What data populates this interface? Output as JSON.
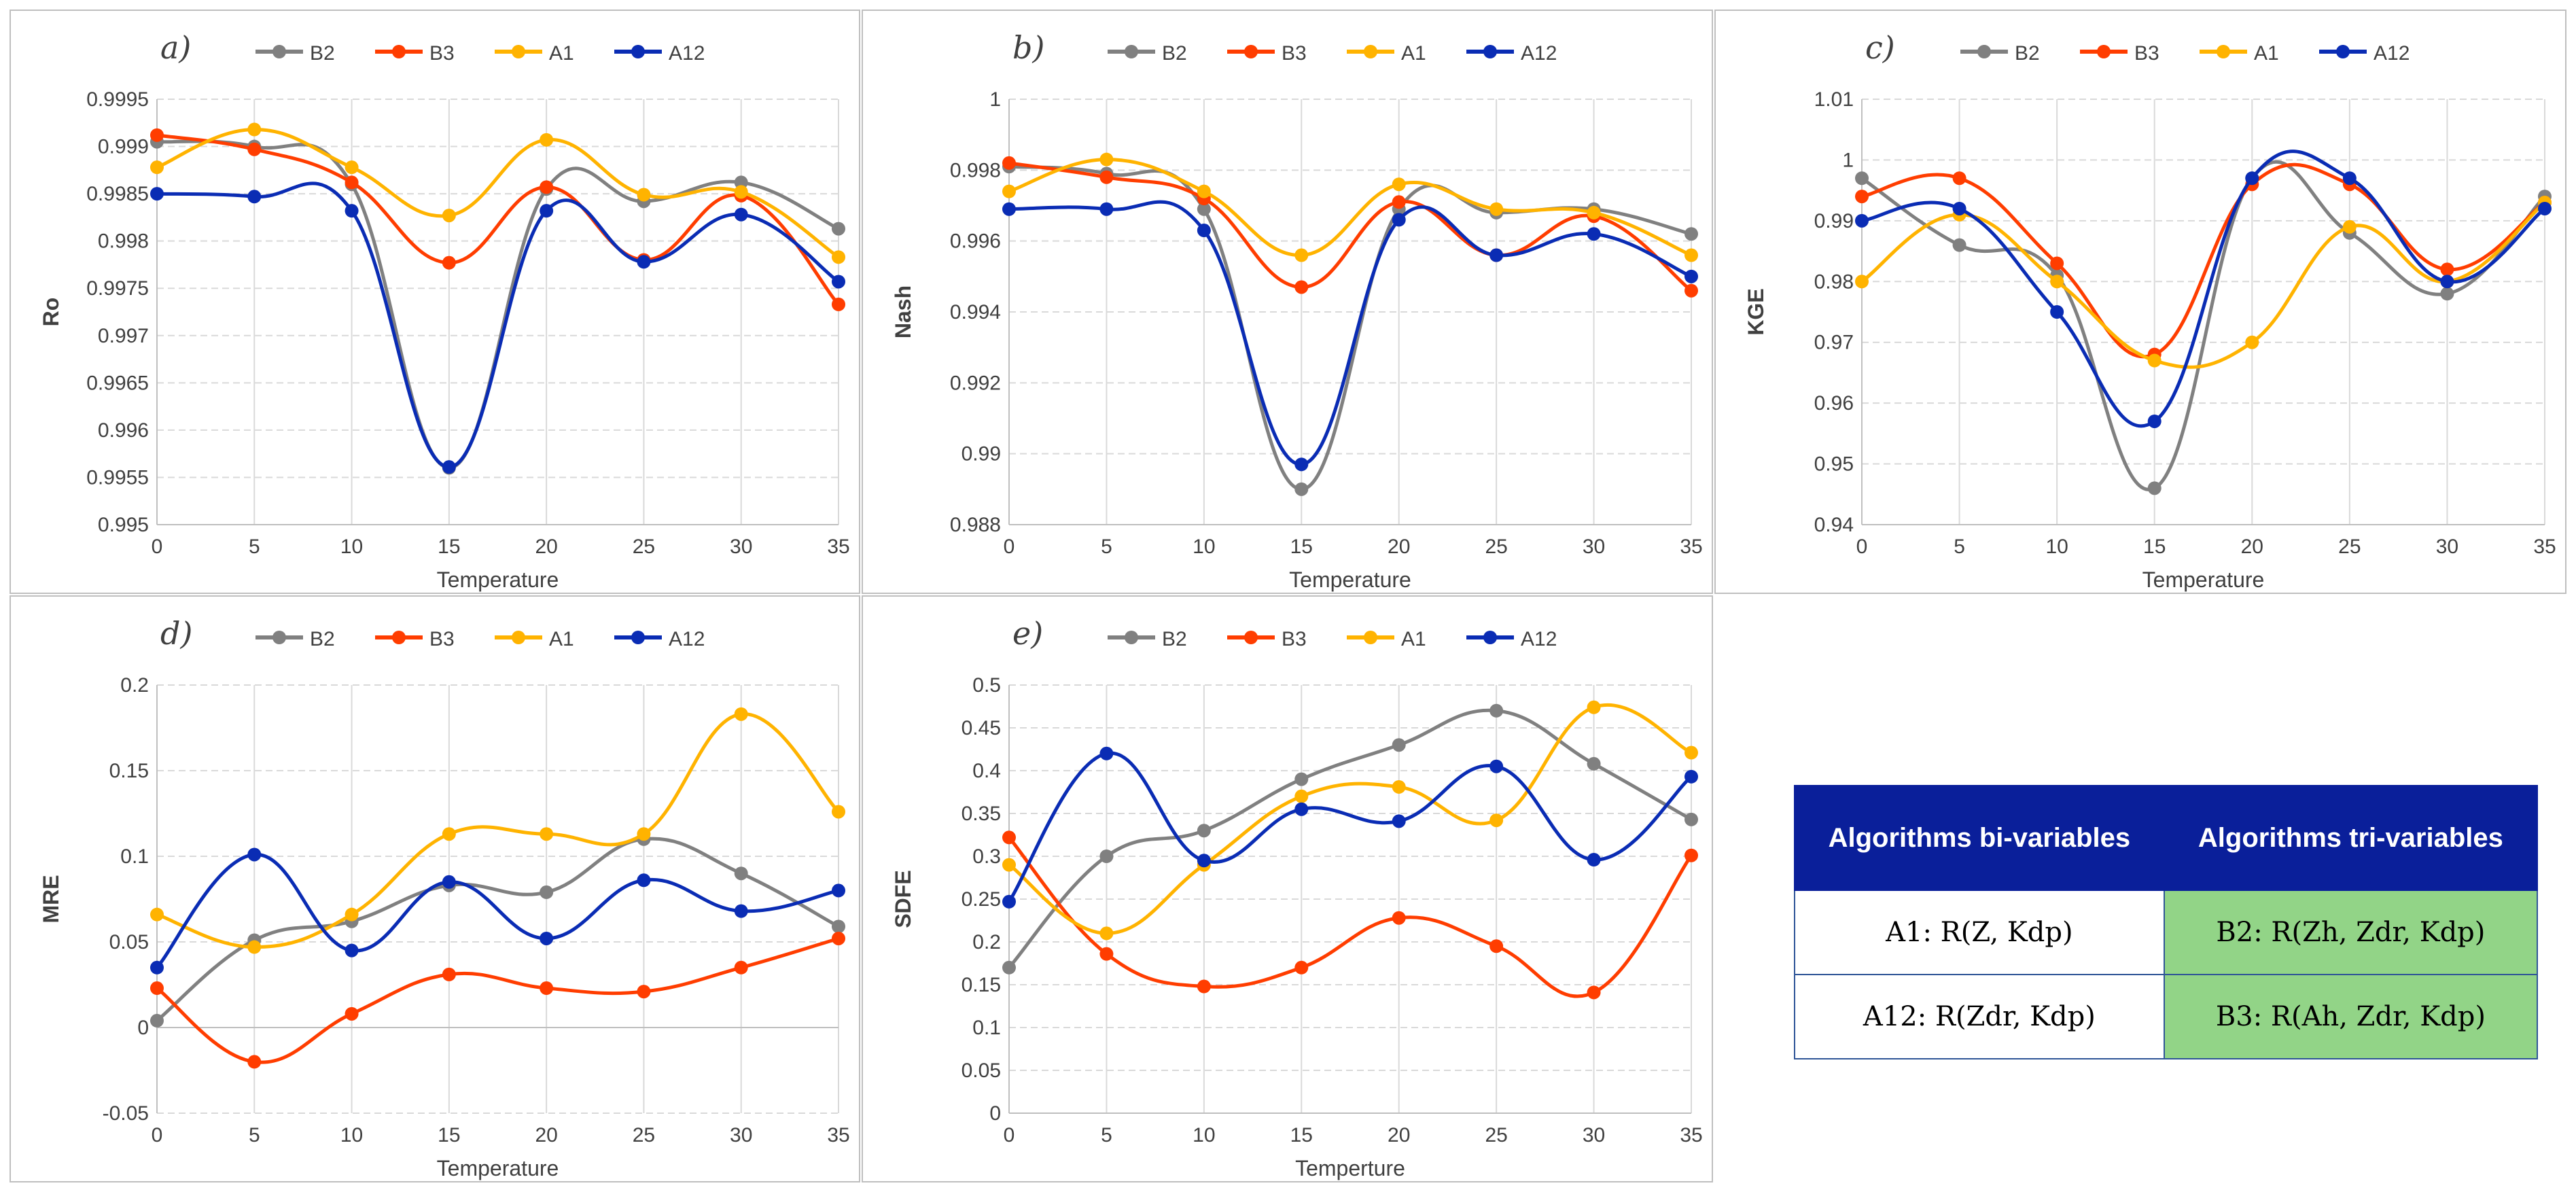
{
  "x": [
    0,
    5,
    10,
    15,
    20,
    25,
    30,
    35
  ],
  "series_names": [
    "B2",
    "B3",
    "A1",
    "A12"
  ],
  "colors": {
    "B2": "#808080",
    "B3": "#ff3d00",
    "A1": "#ffb300",
    "A12": "#0a2cb4"
  },
  "chart_data": [
    {
      "type": "line",
      "panel": "a)",
      "ylabel": "Ro",
      "xlabel": "Temperature",
      "ylim": [
        0.995,
        0.9995
      ],
      "yticks": [
        "0.995",
        "0.9955",
        "0.996",
        "0.9965",
        "0.997",
        "0.9975",
        "0.998",
        "0.9985",
        "0.999",
        "0.9995"
      ],
      "legend": "top",
      "series": [
        {
          "name": "B2",
          "values": [
            0.99905,
            0.999,
            0.9986,
            0.9956,
            0.99855,
            0.99842,
            0.99862,
            0.99813
          ]
        },
        {
          "name": "B3",
          "values": [
            0.99912,
            0.99897,
            0.99862,
            0.99777,
            0.99857,
            0.9978,
            0.99848,
            0.99733
          ]
        },
        {
          "name": "A1",
          "values": [
            0.99878,
            0.99918,
            0.99878,
            0.99827,
            0.99907,
            0.99849,
            0.99852,
            0.99783
          ]
        },
        {
          "name": "A12",
          "values": [
            0.9985,
            0.99847,
            0.99832,
            0.99561,
            0.99832,
            0.99778,
            0.99828,
            0.99757
          ]
        }
      ]
    },
    {
      "type": "line",
      "panel": "b)",
      "ylabel": "Nash",
      "xlabel": "Temperature",
      "ylim": [
        0.988,
        1.0
      ],
      "yticks": [
        "0.988",
        "0.99",
        "0.992",
        "0.994",
        "0.996",
        "0.998",
        "1"
      ],
      "legend": "top",
      "series": [
        {
          "name": "B2",
          "values": [
            0.9981,
            0.9979,
            0.9969,
            0.989,
            0.9969,
            0.9968,
            0.9969,
            0.9962
          ]
        },
        {
          "name": "B3",
          "values": [
            0.9982,
            0.9978,
            0.9972,
            0.9947,
            0.9971,
            0.9956,
            0.9967,
            0.9946
          ]
        },
        {
          "name": "A1",
          "values": [
            0.9974,
            0.9983,
            0.9974,
            0.9956,
            0.9976,
            0.9969,
            0.9968,
            0.9956
          ]
        },
        {
          "name": "A12",
          "values": [
            0.9969,
            0.9969,
            0.9963,
            0.9897,
            0.9966,
            0.9956,
            0.9962,
            0.995
          ]
        }
      ]
    },
    {
      "type": "line",
      "panel": "c)",
      "ylabel": "KGE",
      "xlabel": "Temperature",
      "ylim": [
        0.94,
        1.01
      ],
      "yticks": [
        "0.94",
        "0.95",
        "0.96",
        "0.97",
        "0.98",
        "0.99",
        "1",
        "1.01"
      ],
      "legend": "top",
      "series": [
        {
          "name": "B2",
          "values": [
            0.997,
            0.986,
            0.981,
            0.946,
            0.997,
            0.988,
            0.978,
            0.994
          ]
        },
        {
          "name": "B3",
          "values": [
            0.994,
            0.997,
            0.983,
            0.968,
            0.996,
            0.996,
            0.982,
            0.993
          ]
        },
        {
          "name": "A1",
          "values": [
            0.98,
            0.991,
            0.98,
            0.967,
            0.97,
            0.989,
            0.98,
            0.993
          ]
        },
        {
          "name": "A12",
          "values": [
            0.99,
            0.992,
            0.975,
            0.957,
            0.997,
            0.997,
            0.98,
            0.992
          ]
        }
      ]
    },
    {
      "type": "line",
      "panel": "d)",
      "ylabel": "MRE",
      "xlabel": "Temperature",
      "ylim": [
        -0.05,
        0.2
      ],
      "yticks": [
        "-0.05",
        "0",
        "0.05",
        "0.1",
        "0.15",
        "0.2"
      ],
      "legend": "top",
      "series": [
        {
          "name": "B2",
          "values": [
            0.004,
            0.051,
            0.062,
            0.083,
            0.079,
            0.11,
            0.09,
            0.059
          ]
        },
        {
          "name": "B3",
          "values": [
            0.023,
            -0.02,
            0.008,
            0.031,
            0.023,
            0.021,
            0.035,
            0.052
          ]
        },
        {
          "name": "A1",
          "values": [
            0.066,
            0.047,
            0.066,
            0.113,
            0.113,
            0.113,
            0.183,
            0.126
          ]
        },
        {
          "name": "A12",
          "values": [
            0.035,
            0.101,
            0.045,
            0.085,
            0.052,
            0.086,
            0.068,
            0.08
          ]
        }
      ]
    },
    {
      "type": "line",
      "panel": "e)",
      "ylabel": "SDFE",
      "xlabel": "Temperture",
      "ylim": [
        0,
        0.5
      ],
      "yticks": [
        "0",
        "0.05",
        "0.1",
        "0.15",
        "0.2",
        "0.25",
        "0.3",
        "0.35",
        "0.4",
        "0.45",
        "0.5"
      ],
      "legend": "top",
      "series": [
        {
          "name": "B2",
          "values": [
            0.17,
            0.3,
            0.33,
            0.39,
            0.43,
            0.47,
            0.408,
            0.343
          ]
        },
        {
          "name": "B3",
          "values": [
            0.322,
            0.186,
            0.148,
            0.17,
            0.228,
            0.195,
            0.141,
            0.301
          ]
        },
        {
          "name": "A1",
          "values": [
            0.29,
            0.21,
            0.29,
            0.37,
            0.381,
            0.342,
            0.474,
            0.421
          ]
        },
        {
          "name": "A12",
          "values": [
            0.247,
            0.42,
            0.295,
            0.355,
            0.341,
            0.405,
            0.296,
            0.393
          ]
        }
      ]
    }
  ],
  "table": {
    "headers": [
      "Algorithms bi-variables",
      "Algorithms tri-variables"
    ],
    "rows": [
      [
        "A1: R(Z, Kdp)",
        "B2: R(Zh, Zdr, Kdp)"
      ],
      [
        "A12: R(Zdr, Kdp)",
        "B3: R(Ah, Zdr, Kdp)"
      ]
    ]
  }
}
